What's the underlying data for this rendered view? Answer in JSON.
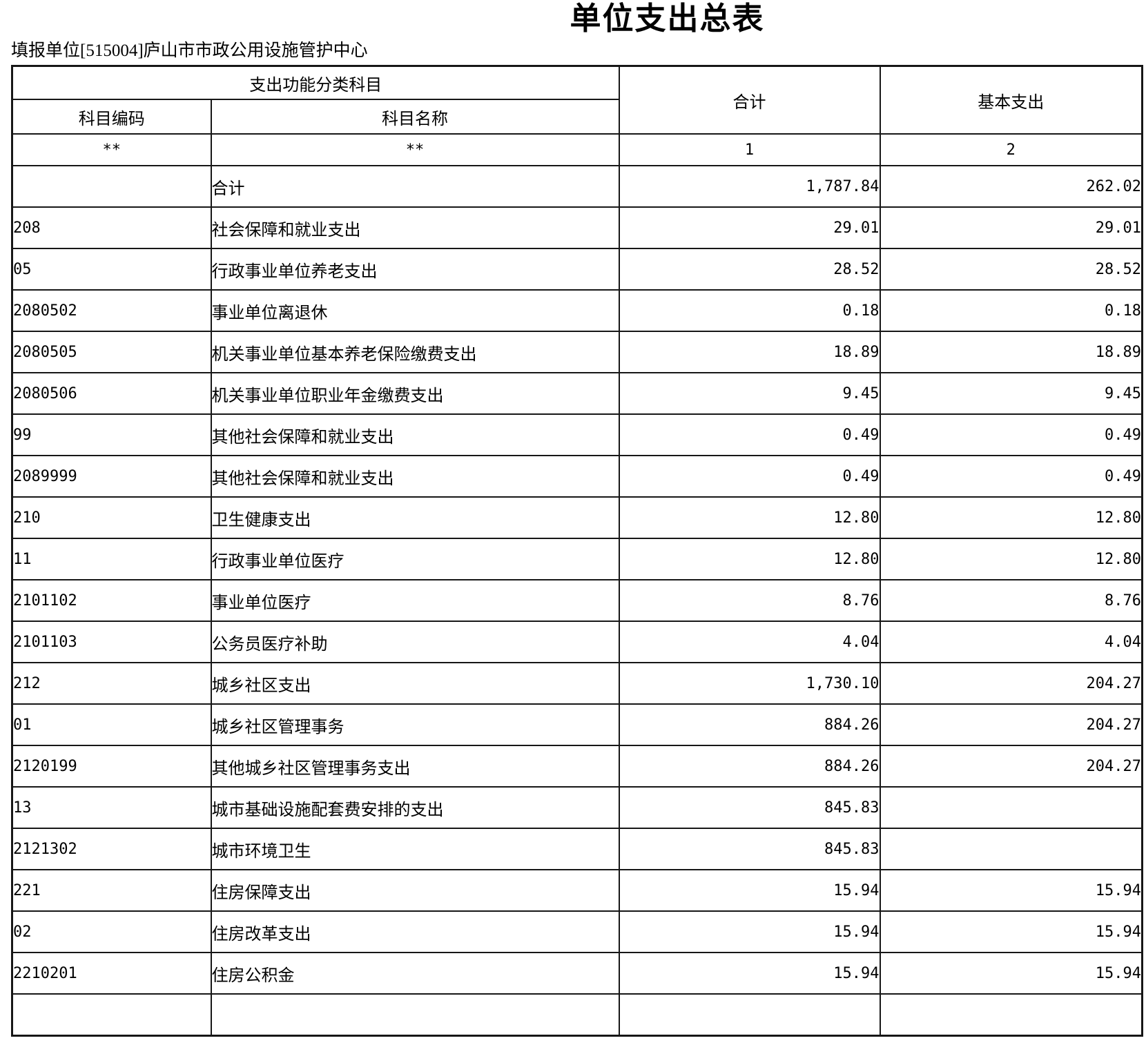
{
  "report": {
    "title": "单位支出总表",
    "filing_unit": "填报单位[515004]庐山市市政公用设施管护中心"
  },
  "table": {
    "header": {
      "function_group": "支出功能分类科目",
      "code_label": "科目编码",
      "name_label": "科目名称",
      "total_label": "合计",
      "basic_label": "基本支出",
      "code_mask": "**",
      "name_mask": "**",
      "total_col_no": "1",
      "basic_col_no": "2"
    },
    "rows": [
      {
        "code": "",
        "name": "合计",
        "indent": 0,
        "total": "1,787.84",
        "basic": "262.02"
      },
      {
        "code": "208",
        "name": "社会保障和就业支出",
        "indent": 0,
        "total": "29.01",
        "basic": "29.01"
      },
      {
        "code": "05",
        "name": "行政事业单位养老支出",
        "indent": 1,
        "total": "28.52",
        "basic": "28.52"
      },
      {
        "code": "2080502",
        "name": "事业单位离退休",
        "indent": 2,
        "total": "0.18",
        "basic": "0.18"
      },
      {
        "code": "2080505",
        "name": "机关事业单位基本养老保险缴费支出",
        "indent": 2,
        "total": "18.89",
        "basic": "18.89"
      },
      {
        "code": "2080506",
        "name": "机关事业单位职业年金缴费支出",
        "indent": 2,
        "total": "9.45",
        "basic": "9.45"
      },
      {
        "code": "99",
        "name": "其他社会保障和就业支出",
        "indent": 1,
        "total": "0.49",
        "basic": "0.49"
      },
      {
        "code": "2089999",
        "name": "其他社会保障和就业支出",
        "indent": 2,
        "total": "0.49",
        "basic": "0.49"
      },
      {
        "code": "210",
        "name": "卫生健康支出",
        "indent": 0,
        "total": "12.80",
        "basic": "12.80"
      },
      {
        "code": "11",
        "name": "行政事业单位医疗",
        "indent": 1,
        "total": "12.80",
        "basic": "12.80"
      },
      {
        "code": "2101102",
        "name": "事业单位医疗",
        "indent": 2,
        "total": "8.76",
        "basic": "8.76"
      },
      {
        "code": "2101103",
        "name": "公务员医疗补助",
        "indent": 2,
        "total": "4.04",
        "basic": "4.04"
      },
      {
        "code": "212",
        "name": "城乡社区支出",
        "indent": 0,
        "total": "1,730.10",
        "basic": "204.27"
      },
      {
        "code": "01",
        "name": "城乡社区管理事务",
        "indent": 1,
        "total": "884.26",
        "basic": "204.27"
      },
      {
        "code": "2120199",
        "name": "其他城乡社区管理事务支出",
        "indent": 2,
        "total": "884.26",
        "basic": "204.27"
      },
      {
        "code": "13",
        "name": "城市基础设施配套费安排的支出",
        "indent": 1,
        "total": "845.83",
        "basic": ""
      },
      {
        "code": "2121302",
        "name": "城市环境卫生",
        "indent": 2,
        "total": "845.83",
        "basic": ""
      },
      {
        "code": "221",
        "name": "住房保障支出",
        "indent": 0,
        "total": "15.94",
        "basic": "15.94"
      },
      {
        "code": "02",
        "name": "住房改革支出",
        "indent": 1,
        "total": "15.94",
        "basic": "15.94"
      },
      {
        "code": "2210201",
        "name": "住房公积金",
        "indent": 2,
        "total": "15.94",
        "basic": "15.94"
      },
      {
        "code": "",
        "name": "",
        "indent": 0,
        "total": "",
        "basic": ""
      }
    ]
  }
}
